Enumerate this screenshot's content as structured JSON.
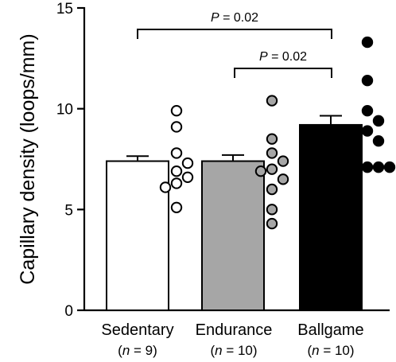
{
  "chart_data": {
    "type": "bar",
    "ylabel": "Capillary density (loops/mm)",
    "ylim": [
      0,
      15
    ],
    "yticks": [
      "0",
      "5",
      "10",
      "15"
    ],
    "categories": [
      "Sedentary",
      "Endurance",
      "Ballgame"
    ],
    "n_labels": [
      {
        "n": "n",
        "rest": " = 9)"
      },
      {
        "n": "n",
        "rest": " = 10)"
      },
      {
        "n": "n",
        "rest": " = 10)"
      }
    ],
    "means": [
      7.4,
      7.4,
      9.2
    ],
    "sem": [
      0.25,
      0.3,
      0.45
    ],
    "bar_colors": [
      "#ffffff",
      "#a6a6a6",
      "#000000"
    ],
    "points": [
      [
        9.9,
        9.1,
        7.8,
        7.3,
        6.9,
        6.6,
        6.3,
        6.1,
        5.1
      ],
      [
        10.4,
        8.5,
        7.8,
        7.4,
        7.0,
        6.9,
        6.5,
        6.0,
        5.0,
        4.3
      ],
      [
        13.3,
        11.4,
        9.9,
        9.4,
        8.9,
        8.4,
        7.1,
        7.1,
        7.1,
        7.1
      ]
    ],
    "comparisons": [
      {
        "text": "P = 0.02",
        "from": 0,
        "to": 2
      },
      {
        "text": "P = 0.02",
        "from": 1,
        "to": 2
      }
    ]
  }
}
